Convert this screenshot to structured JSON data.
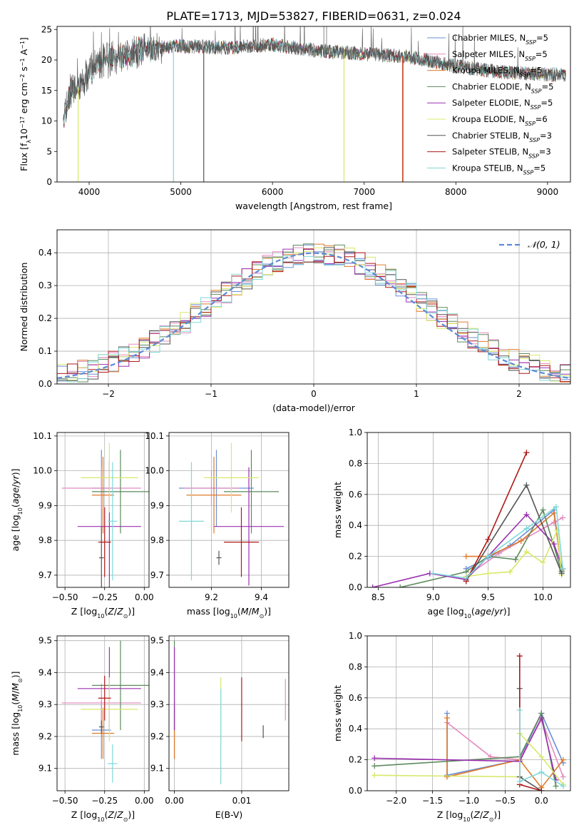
{
  "title": "PLATE=1713, MJD=53827, FIBERID=0631, z=0.024",
  "colors": {
    "Chabrier MILES": "#6a8fd6",
    "Salpeter MILES": "#e58ac0",
    "Kroupa MILES": "#e07a2a",
    "Chabrier ELODIE": "#5d8a5d",
    "Salpeter ELODIE": "#9b30b0",
    "Kroupa ELODIE": "#d8e86a",
    "Chabrier STELIB": "#555555",
    "Salpeter STELIB": "#b01818",
    "Kroupa STELIB": "#7fd8d8",
    "normal": "#5b8bd6"
  },
  "chart_data": [
    {
      "type": "line",
      "name": "spectrum",
      "xlabel": "wavelength [Angstrom, rest frame]",
      "ylabel": "Flux [f_λ 10^-17 erg cm^-2 s^-1 A^-1]",
      "xlim": [
        3650,
        9250
      ],
      "ylim": [
        0,
        25.5
      ],
      "xticks": [
        "4000",
        "5000",
        "6000",
        "7000",
        "8000",
        "9000"
      ],
      "yticks": [
        "0",
        "5",
        "10",
        "15",
        "20",
        "25"
      ],
      "legend": {
        "placement": "top-right",
        "entries": [
          {
            "text": "Chabrier MILES, N",
            "sub": "SSP",
            "val": "=5"
          },
          {
            "text": "Salpeter MILES, N",
            "sub": "SSP",
            "val": "=5"
          },
          {
            "text": "Kroupa MILES, N",
            "sub": "SSP",
            "val": "=5"
          },
          {
            "text": "Chabrier ELODIE, N",
            "sub": "SSP",
            "val": "=5"
          },
          {
            "text": "Salpeter ELODIE, N",
            "sub": "SSP",
            "val": "=5"
          },
          {
            "text": "Kroupa ELODIE, N",
            "sub": "SSP",
            "val": "=6"
          },
          {
            "text": "Chabrier STELIB, N",
            "sub": "SSP",
            "val": "=3"
          },
          {
            "text": "Salpeter STELIB, N",
            "sub": "SSP",
            "val": "=3"
          },
          {
            "text": "Kroupa STELIB, N",
            "sub": "SSP",
            "val": "=5"
          }
        ]
      },
      "continuum": [
        [
          3720,
          10
        ],
        [
          3800,
          15
        ],
        [
          3950,
          16
        ],
        [
          4000,
          18
        ],
        [
          4100,
          19.5
        ],
        [
          4400,
          21
        ],
        [
          4700,
          22
        ],
        [
          5000,
          22.3
        ],
        [
          5500,
          22
        ],
        [
          6000,
          22.5
        ],
        [
          6500,
          21.5
        ],
        [
          7000,
          21
        ],
        [
          7500,
          20.5
        ],
        [
          8000,
          19
        ],
        [
          8500,
          18
        ],
        [
          9200,
          17.5
        ]
      ],
      "spikes": [
        {
          "series": "Kroupa ELODIE",
          "x": 3880,
          "y": 0
        },
        {
          "series": "Kroupa STELIB",
          "x": 4920,
          "y": 0
        },
        {
          "series": "Chabrier STELIB",
          "x": 5250,
          "y": 0
        },
        {
          "series": "Kroupa ELODIE",
          "x": 6780,
          "y": 0
        },
        {
          "series": "Salpeter STELIB",
          "x": 7420,
          "y": 0
        },
        {
          "series": "Kroupa MILES",
          "x": 7425,
          "y": 0
        }
      ]
    },
    {
      "type": "line",
      "name": "residuals",
      "xlabel": "(data-model)/error",
      "ylabel": "Normed distribution",
      "xlim": [
        -2.5,
        2.5
      ],
      "ylim": [
        0,
        0.47
      ],
      "xticks": [
        "-2",
        "-1",
        "0",
        "1",
        "2"
      ],
      "yticks": [
        "0.0",
        "0.1",
        "0.2",
        "0.3",
        "0.4"
      ],
      "legend": {
        "placement": "top-right",
        "label": "𝒩(0, 1)"
      },
      "bin_width": 0.1
    },
    {
      "type": "scatter",
      "name": "age-vs-Z",
      "xlabel": "Z [log10(Z/Z⊙)]",
      "ylabel": "age [log10(age/yr)]",
      "xlim": [
        -0.55,
        0.03
      ],
      "ylim": [
        9.665,
        10.11
      ],
      "xticks": [
        "-0.50",
        "-0.25",
        "0.00"
      ],
      "yticks": [
        "9.7",
        "9.8",
        "9.9",
        "10.0",
        "10.1"
      ],
      "points": [
        {
          "series": "Chabrier MILES",
          "x": -0.27,
          "xerr": 0.06,
          "y": 9.95,
          "yerr": 0.11
        },
        {
          "series": "Salpeter MILES",
          "x": -0.27,
          "xerr": 0.25,
          "y": 9.95,
          "yerr": 0.06
        },
        {
          "series": "Kroupa MILES",
          "x": -0.26,
          "xerr": 0.07,
          "y": 9.93,
          "yerr": 0.11
        },
        {
          "series": "Chabrier ELODIE",
          "x": -0.15,
          "xerr": 0.18,
          "y": 9.94,
          "yerr": 0.12
        },
        {
          "series": "Salpeter ELODIE",
          "x": -0.22,
          "xerr": 0.2,
          "y": 9.84,
          "yerr": 0.19
        },
        {
          "series": "Kroupa ELODIE",
          "x": -0.22,
          "xerr": 0.18,
          "y": 9.98,
          "yerr": 0.1
        },
        {
          "series": "Chabrier STELIB",
          "x": -0.27,
          "xerr": 0.015,
          "y": 9.75,
          "yerr": 0.09
        },
        {
          "series": "Salpeter STELIB",
          "x": -0.25,
          "xerr": 0.04,
          "y": 9.795,
          "yerr": 0.1
        },
        {
          "series": "Kroupa STELIB",
          "x": -0.2,
          "xerr": 0.03,
          "y": 9.855,
          "yerr": 0.17
        }
      ]
    },
    {
      "type": "scatter",
      "name": "age-vs-mass",
      "xlabel": "mass [log10(M/M⊙)]",
      "ylabel": "",
      "xlim": [
        9.03,
        9.51
      ],
      "ylim": [
        9.665,
        10.11
      ],
      "xticks": [
        "9.2",
        "9.4"
      ],
      "yticks": [
        "9.7",
        "9.8",
        "9.9",
        "10.0",
        "10.1"
      ],
      "points": [
        {
          "series": "Chabrier MILES",
          "x": 9.22,
          "xerr": 0.15,
          "y": 9.95,
          "yerr": 0.11
        },
        {
          "series": "Salpeter MILES",
          "x": 9.2,
          "xerr": 0.11,
          "y": 9.95,
          "yerr": 0.05
        },
        {
          "series": "Kroupa MILES",
          "x": 9.21,
          "xerr": 0.11,
          "y": 9.93,
          "yerr": 0.11
        },
        {
          "series": "Chabrier ELODIE",
          "x": 9.36,
          "xerr": 0.11,
          "y": 9.94,
          "yerr": 0.12
        },
        {
          "series": "Salpeter ELODIE",
          "x": 9.35,
          "xerr": 0.14,
          "y": 9.84,
          "yerr": 0.17
        },
        {
          "series": "Kroupa ELODIE",
          "x": 9.28,
          "xerr": 0.11,
          "y": 9.98,
          "yerr": 0.1
        },
        {
          "series": "Chabrier STELIB",
          "x": 9.23,
          "xerr": 0.01,
          "y": 9.75,
          "yerr": 0.02
        },
        {
          "series": "Salpeter STELIB",
          "x": 9.32,
          "xerr": 0.07,
          "y": 9.795,
          "yerr": 0.1
        },
        {
          "series": "Kroupa STELIB",
          "x": 9.12,
          "xerr": 0.05,
          "y": 9.855,
          "yerr": 0.17
        }
      ]
    },
    {
      "type": "line",
      "name": "mass-weight-vs-age",
      "xlabel": "age [log10(age/yr)]",
      "ylabel": "mass weight",
      "xlim": [
        8.4,
        10.25
      ],
      "ylim": [
        0,
        1
      ],
      "xticks": [
        "8.5",
        "9.0",
        "9.5",
        "10.0"
      ],
      "yticks": [
        "0.0",
        "0.2",
        "0.4",
        "0.6",
        "0.8",
        "1.0"
      ],
      "series": [
        {
          "name": "Chabrier MILES",
          "points": [
            [
              9.3,
              0.12
            ],
            [
              9.5,
              0.19
            ],
            [
              9.7,
              0.27
            ],
            [
              10.1,
              0.5
            ],
            [
              10.17,
              0.1
            ]
          ]
        },
        {
          "name": "Salpeter MILES",
          "points": [
            [
              9.3,
              0.07
            ],
            [
              9.6,
              0.22
            ],
            [
              9.8,
              0.3
            ],
            [
              10.1,
              0.42
            ],
            [
              10.18,
              0.45
            ]
          ]
        },
        {
          "name": "Kroupa MILES",
          "points": [
            [
              9.3,
              0.2
            ],
            [
              9.5,
              0.2
            ],
            [
              9.8,
              0.3
            ],
            [
              10.1,
              0.48
            ],
            [
              10.17,
              0.11
            ]
          ]
        },
        {
          "name": "Chabrier ELODIE",
          "points": [
            [
              8.7,
              0.0
            ],
            [
              9.3,
              0.1
            ],
            [
              9.5,
              0.2
            ],
            [
              9.75,
              0.18
            ],
            [
              10.0,
              0.5
            ],
            [
              10.17,
              0.1
            ]
          ]
        },
        {
          "name": "Salpeter ELODIE",
          "points": [
            [
              8.45,
              0.0
            ],
            [
              8.97,
              0.09
            ],
            [
              9.3,
              0.05
            ],
            [
              9.5,
              0.2
            ],
            [
              9.85,
              0.47
            ],
            [
              10.1,
              0.28
            ],
            [
              10.18,
              0.12
            ]
          ]
        },
        {
          "name": "Kroupa ELODIE",
          "points": [
            [
              9.3,
              0.07
            ],
            [
              9.5,
              0.09
            ],
            [
              9.7,
              0.1
            ],
            [
              9.85,
              0.23
            ],
            [
              10.0,
              0.16
            ],
            [
              10.13,
              0.37
            ],
            [
              10.17,
              0.08
            ]
          ]
        },
        {
          "name": "Chabrier STELIB",
          "points": [
            [
              9.3,
              0.04
            ],
            [
              9.85,
              0.66
            ],
            [
              10.17,
              0.09
            ]
          ]
        },
        {
          "name": "Salpeter STELIB",
          "points": [
            [
              9.3,
              0.04
            ],
            [
              9.5,
              0.31
            ],
            [
              9.85,
              0.87
            ]
          ]
        },
        {
          "name": "Kroupa STELIB",
          "points": [
            [
              9.0,
              0.09
            ],
            [
              9.3,
              0.06
            ],
            [
              9.5,
              0.2
            ],
            [
              9.85,
              0.38
            ],
            [
              10.12,
              0.52
            ],
            [
              10.18,
              0.12
            ]
          ]
        }
      ]
    },
    {
      "type": "scatter",
      "name": "mass-vs-Z",
      "xlabel": "Z [log10(Z/Z⊙)]",
      "ylabel": "mass [log10(M/M⊙)]",
      "xlim": [
        -0.55,
        0.03
      ],
      "ylim": [
        9.03,
        9.515
      ],
      "xticks": [
        "-0.50",
        "-0.25",
        "0.00"
      ],
      "yticks": [
        "9.1",
        "9.2",
        "9.3",
        "9.4",
        "9.5"
      ],
      "points": [
        {
          "series": "Chabrier MILES",
          "x": -0.27,
          "xerr": 0.06,
          "y": 9.22,
          "yerr": 0.09
        },
        {
          "series": "Salpeter MILES",
          "x": -0.27,
          "xerr": 0.25,
          "y": 9.305,
          "yerr": 0.06
        },
        {
          "series": "Kroupa MILES",
          "x": -0.26,
          "xerr": 0.07,
          "y": 9.21,
          "yerr": 0.08
        },
        {
          "series": "Chabrier ELODIE",
          "x": -0.15,
          "xerr": 0.18,
          "y": 9.36,
          "yerr": 0.14
        },
        {
          "series": "Salpeter ELODIE",
          "x": -0.22,
          "xerr": 0.2,
          "y": 9.35,
          "yerr": 0.13
        },
        {
          "series": "Kroupa ELODIE",
          "x": -0.22,
          "xerr": 0.18,
          "y": 9.285,
          "yerr": 0.1
        },
        {
          "series": "Chabrier STELIB",
          "x": -0.27,
          "xerr": 0.015,
          "y": 9.23,
          "yerr": 0.02
        },
        {
          "series": "Salpeter STELIB",
          "x": -0.25,
          "xerr": 0.04,
          "y": 9.32,
          "yerr": 0.07
        },
        {
          "series": "Kroupa STELIB",
          "x": -0.2,
          "xerr": 0.03,
          "y": 9.115,
          "yerr": 0.06
        }
      ]
    },
    {
      "type": "scatter",
      "name": "mass-vs-ebv",
      "xlabel": "E(B-V)",
      "ylabel": "",
      "xlim": [
        -0.0008,
        0.017
      ],
      "ylim": [
        9.03,
        9.515
      ],
      "xticks": [
        "0.00",
        "0.01"
      ],
      "yticks": [
        "9.1",
        "9.2",
        "9.3",
        "9.4",
        "9.5"
      ],
      "points": [
        {
          "series": "Chabrier MILES",
          "x": 0.0,
          "y": 9.22,
          "yerr": 0.09
        },
        {
          "series": "Kroupa MILES",
          "x": 0.0,
          "y": 9.21,
          "yerr": 0.08
        },
        {
          "series": "Chabrier ELODIE",
          "x": 0.0,
          "y": 9.36,
          "yerr": 0.14
        },
        {
          "series": "Salpeter ELODIE",
          "x": 0.0,
          "y": 9.35,
          "yerr": 0.13
        },
        {
          "series": "Kroupa ELODIE",
          "x": 0.0069,
          "y": 9.285,
          "yerr": 0.1
        },
        {
          "series": "Kroupa STELIB",
          "x": 0.0069,
          "y": 9.2,
          "yerr": 0.15
        },
        {
          "series": "Salpeter STELIB",
          "x": 0.01,
          "y": 9.285,
          "yerr": 0.1
        },
        {
          "series": "Chabrier STELIB",
          "x": 0.0132,
          "y": 9.215,
          "yerr": 0.02
        },
        {
          "series": "Salpeter MILES",
          "x": 0.0165,
          "y": 9.315,
          "yerr": 0.065
        }
      ]
    },
    {
      "type": "line",
      "name": "mass-weight-vs-Z",
      "xlabel": "Z [log10(Z/Z⊙)]",
      "ylabel": "mass weight",
      "xlim": [
        -2.4,
        0.4
      ],
      "ylim": [
        0,
        1
      ],
      "xticks": [
        "-2.0",
        "-1.5",
        "-1.0",
        "-0.5",
        "0.0"
      ],
      "yticks": [
        "0.0",
        "0.2",
        "0.4",
        "0.6",
        "0.8",
        "1.0"
      ],
      "series": [
        {
          "name": "Chabrier MILES",
          "points": [
            [
              -1.3,
              0.5
            ],
            [
              -1.3,
              0.1
            ],
            [
              -0.3,
              0.2
            ],
            [
              0.0,
              0.5
            ],
            [
              0.3,
              0.18
            ]
          ]
        },
        {
          "name": "Salpeter MILES",
          "points": [
            [
              -1.3,
              0.44
            ],
            [
              -0.7,
              0.22
            ],
            [
              -0.3,
              0.2
            ],
            [
              0.0,
              0.46
            ],
            [
              0.3,
              0.09
            ]
          ]
        },
        {
          "name": "Kroupa MILES",
          "points": [
            [
              -1.3,
              0.47
            ],
            [
              -1.3,
              0.09
            ],
            [
              -0.3,
              0.2
            ],
            [
              0.0,
              0.02
            ],
            [
              0.3,
              0.2
            ]
          ]
        },
        {
          "name": "Chabrier ELODIE",
          "points": [
            [
              -2.3,
              0.16
            ],
            [
              -0.3,
              0.22
            ],
            [
              0.0,
              0.5
            ],
            [
              0.2,
              0.03
            ]
          ]
        },
        {
          "name": "Salpeter ELODIE",
          "points": [
            [
              -2.3,
              0.21
            ],
            [
              -0.3,
              0.19
            ],
            [
              0.0,
              0.47
            ],
            [
              0.2,
              0.07
            ]
          ]
        },
        {
          "name": "Kroupa ELODIE",
          "points": [
            [
              -2.3,
              0.1
            ],
            [
              -0.3,
              0.09
            ],
            [
              -0.3,
              0.37
            ],
            [
              0.0,
              0.22
            ],
            [
              0.3,
              0.04
            ]
          ]
        },
        {
          "name": "Chabrier STELIB",
          "points": [
            [
              -0.3,
              0.66
            ],
            [
              -0.3,
              0.09
            ],
            [
              0.0,
              0.0
            ]
          ]
        },
        {
          "name": "Salpeter STELIB",
          "points": [
            [
              -0.3,
              0.87
            ],
            [
              -0.3,
              0.04
            ],
            [
              0.0,
              0.0
            ]
          ]
        },
        {
          "name": "Kroupa STELIB",
          "points": [
            [
              -0.3,
              0.52
            ],
            [
              -0.3,
              0.06
            ],
            [
              0.0,
              0.12
            ],
            [
              0.3,
              0.03
            ]
          ]
        }
      ]
    }
  ]
}
